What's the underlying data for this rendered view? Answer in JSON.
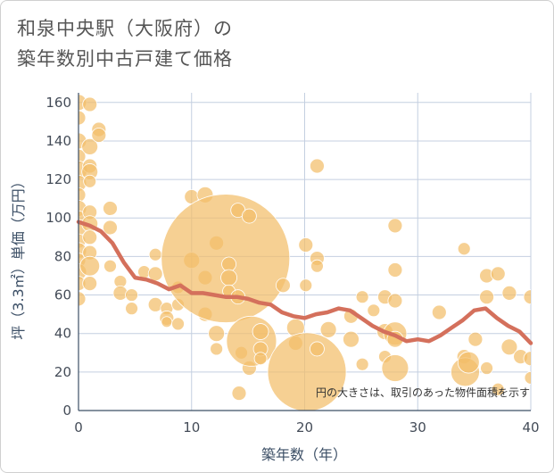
{
  "title": {
    "line1": "和泉中央駅（大阪府）の",
    "line2": "築年数別中古戸建て価格"
  },
  "colors": {
    "bubble": "#f2be6a",
    "line": "#d4705c",
    "grid": "#c4cfe0",
    "axis": "#3c4f66"
  },
  "chart_data": {
    "type": "scatter",
    "title": "和泉中央駅（大阪府）の築年数別中古戸建て価格",
    "xlabel": "築年数（年）",
    "ylabel": "坪（3.3㎡）単価（万円）",
    "xlim": [
      0,
      40
    ],
    "ylim": [
      0,
      165
    ],
    "xticks": [
      0,
      10,
      20,
      30,
      40
    ],
    "yticks": [
      0,
      20,
      40,
      60,
      80,
      100,
      120,
      140,
      160
    ],
    "note": "円の大きさは、取引のあった物件面積を示す",
    "points": [
      {
        "x": 0,
        "y": 160,
        "r": 9
      },
      {
        "x": 0,
        "y": 152,
        "r": 8
      },
      {
        "x": 0,
        "y": 140,
        "r": 9
      },
      {
        "x": 0,
        "y": 132,
        "r": 8
      },
      {
        "x": 0,
        "y": 125,
        "r": 10
      },
      {
        "x": 0,
        "y": 118,
        "r": 9
      },
      {
        "x": 0,
        "y": 112,
        "r": 8
      },
      {
        "x": 0,
        "y": 105,
        "r": 9
      },
      {
        "x": 0,
        "y": 100,
        "r": 8
      },
      {
        "x": 0,
        "y": 95,
        "r": 9
      },
      {
        "x": 0,
        "y": 88,
        "r": 8
      },
      {
        "x": 0,
        "y": 83,
        "r": 9
      },
      {
        "x": 0,
        "y": 78,
        "r": 8
      },
      {
        "x": 0,
        "y": 72,
        "r": 9
      },
      {
        "x": 0,
        "y": 66,
        "r": 8
      },
      {
        "x": 0,
        "y": 58,
        "r": 8
      },
      {
        "x": 1,
        "y": 159,
        "r": 8
      },
      {
        "x": 1,
        "y": 137,
        "r": 9
      },
      {
        "x": 1,
        "y": 127,
        "r": 8
      },
      {
        "x": 1,
        "y": 124,
        "r": 9
      },
      {
        "x": 1,
        "y": 119,
        "r": 7
      },
      {
        "x": 1,
        "y": 103,
        "r": 8
      },
      {
        "x": 1,
        "y": 97,
        "r": 9
      },
      {
        "x": 1,
        "y": 90,
        "r": 8
      },
      {
        "x": 1,
        "y": 82,
        "r": 8
      },
      {
        "x": 1,
        "y": 75,
        "r": 11
      },
      {
        "x": 1,
        "y": 66,
        "r": 8
      },
      {
        "x": 1.8,
        "y": 146,
        "r": 8
      },
      {
        "x": 1.8,
        "y": 143,
        "r": 8
      },
      {
        "x": 2.8,
        "y": 105,
        "r": 8
      },
      {
        "x": 2.8,
        "y": 95,
        "r": 8
      },
      {
        "x": 2.8,
        "y": 75,
        "r": 7
      },
      {
        "x": 3.7,
        "y": 67,
        "r": 7
      },
      {
        "x": 3.7,
        "y": 61,
        "r": 8
      },
      {
        "x": 4.7,
        "y": 60,
        "r": 7
      },
      {
        "x": 4.7,
        "y": 53,
        "r": 7
      },
      {
        "x": 5.8,
        "y": 72,
        "r": 7
      },
      {
        "x": 6.8,
        "y": 81,
        "r": 7
      },
      {
        "x": 6.8,
        "y": 71,
        "r": 8
      },
      {
        "x": 6.8,
        "y": 55,
        "r": 8
      },
      {
        "x": 7.8,
        "y": 53,
        "r": 7
      },
      {
        "x": 7.8,
        "y": 48,
        "r": 8
      },
      {
        "x": 7.8,
        "y": 46,
        "r": 6
      },
      {
        "x": 8.8,
        "y": 64,
        "r": 7
      },
      {
        "x": 8.8,
        "y": 55,
        "r": 7
      },
      {
        "x": 8.8,
        "y": 45,
        "r": 7
      },
      {
        "x": 10,
        "y": 111,
        "r": 8
      },
      {
        "x": 10,
        "y": 78,
        "r": 9
      },
      {
        "x": 11.2,
        "y": 112,
        "r": 9
      },
      {
        "x": 11.2,
        "y": 69,
        "r": 8
      },
      {
        "x": 11.2,
        "y": 50,
        "r": 8
      },
      {
        "x": 12.2,
        "y": 87,
        "r": 8
      },
      {
        "x": 12.2,
        "y": 40,
        "r": 9
      },
      {
        "x": 12.2,
        "y": 32,
        "r": 7
      },
      {
        "x": 13,
        "y": 79,
        "r": 72
      },
      {
        "x": 13.3,
        "y": 76,
        "r": 8
      },
      {
        "x": 13.3,
        "y": 69,
        "r": 9
      },
      {
        "x": 13.3,
        "y": 62,
        "r": 7
      },
      {
        "x": 14.1,
        "y": 104,
        "r": 8
      },
      {
        "x": 14.1,
        "y": 59,
        "r": 8
      },
      {
        "x": 14.2,
        "y": 9,
        "r": 8
      },
      {
        "x": 14.4,
        "y": 30,
        "r": 7
      },
      {
        "x": 15.1,
        "y": 101,
        "r": 8
      },
      {
        "x": 15.1,
        "y": 22,
        "r": 8
      },
      {
        "x": 15.3,
        "y": 36,
        "r": 28
      },
      {
        "x": 16.1,
        "y": 41,
        "r": 9
      },
      {
        "x": 16.1,
        "y": 32,
        "r": 8
      },
      {
        "x": 16.1,
        "y": 27,
        "r": 7
      },
      {
        "x": 18.1,
        "y": 65,
        "r": 8
      },
      {
        "x": 19.2,
        "y": 43,
        "r": 10
      },
      {
        "x": 19.2,
        "y": 35,
        "r": 8
      },
      {
        "x": 20.1,
        "y": 86,
        "r": 8
      },
      {
        "x": 20.1,
        "y": 65,
        "r": 7
      },
      {
        "x": 20.2,
        "y": 20,
        "r": 44
      },
      {
        "x": 21.1,
        "y": 127,
        "r": 8
      },
      {
        "x": 21.1,
        "y": 79,
        "r": 8
      },
      {
        "x": 21.1,
        "y": 75,
        "r": 7
      },
      {
        "x": 21.1,
        "y": 32,
        "r": 8
      },
      {
        "x": 22.1,
        "y": 42,
        "r": 9
      },
      {
        "x": 24.1,
        "y": 49,
        "r": 8
      },
      {
        "x": 24.1,
        "y": 37,
        "r": 9
      },
      {
        "x": 25.1,
        "y": 59,
        "r": 7
      },
      {
        "x": 25.1,
        "y": 24,
        "r": 7
      },
      {
        "x": 26.1,
        "y": 52,
        "r": 7
      },
      {
        "x": 27.1,
        "y": 59,
        "r": 8
      },
      {
        "x": 27.1,
        "y": 41,
        "r": 9
      },
      {
        "x": 27.1,
        "y": 28,
        "r": 7
      },
      {
        "x": 28,
        "y": 96,
        "r": 8
      },
      {
        "x": 28,
        "y": 73,
        "r": 8
      },
      {
        "x": 28,
        "y": 57,
        "r": 8
      },
      {
        "x": 28,
        "y": 40,
        "r": 13
      },
      {
        "x": 28,
        "y": 37,
        "r": 9
      },
      {
        "x": 28,
        "y": 22,
        "r": 15
      },
      {
        "x": 31.9,
        "y": 51,
        "r": 8
      },
      {
        "x": 34.1,
        "y": 84,
        "r": 7
      },
      {
        "x": 34.1,
        "y": 28,
        "r": 8
      },
      {
        "x": 34.2,
        "y": 20,
        "r": 16
      },
      {
        "x": 34.5,
        "y": 25,
        "r": 12
      },
      {
        "x": 35.1,
        "y": 37,
        "r": 8
      },
      {
        "x": 36.1,
        "y": 70,
        "r": 8
      },
      {
        "x": 36.1,
        "y": 59,
        "r": 8
      },
      {
        "x": 36.1,
        "y": 22,
        "r": 7
      },
      {
        "x": 37.1,
        "y": 71,
        "r": 8
      },
      {
        "x": 37.1,
        "y": 11,
        "r": 7
      },
      {
        "x": 38.1,
        "y": 61,
        "r": 8
      },
      {
        "x": 38.1,
        "y": 33,
        "r": 9
      },
      {
        "x": 39.1,
        "y": 28,
        "r": 8
      },
      {
        "x": 40,
        "y": 59,
        "r": 8
      },
      {
        "x": 40,
        "y": 27,
        "r": 8
      },
      {
        "x": 40,
        "y": 17,
        "r": 7
      }
    ],
    "trend": {
      "x": [
        0,
        1,
        2,
        3,
        4,
        5,
        6,
        7,
        8,
        9,
        10,
        11,
        12,
        13,
        14,
        15,
        16,
        17,
        18,
        19,
        20,
        21,
        22,
        23,
        24,
        25,
        26,
        27,
        28,
        29,
        30,
        31,
        32,
        33,
        34,
        35,
        36,
        37,
        38,
        39,
        40
      ],
      "y": [
        98,
        96,
        93,
        87,
        77,
        69,
        68,
        66,
        63,
        65,
        61,
        61,
        60,
        59,
        59,
        58,
        56,
        55,
        51,
        49,
        48,
        50,
        51,
        53,
        52,
        48,
        44,
        41,
        39,
        36,
        37,
        36,
        39,
        43,
        47,
        52,
        53,
        48,
        44,
        41,
        35
      ]
    }
  }
}
